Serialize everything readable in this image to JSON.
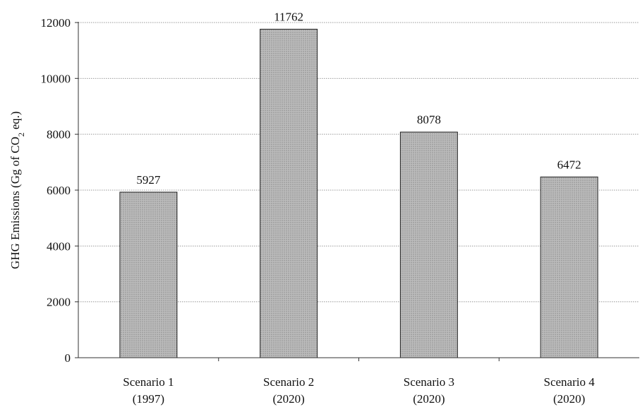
{
  "chart_data": {
    "type": "bar",
    "categories": [
      [
        "Scenario 1",
        "(1997)"
      ],
      [
        "Scenario 2",
        "(2020)"
      ],
      [
        "Scenario 3",
        "(2020)"
      ],
      [
        "Scenario 4",
        "(2020)"
      ]
    ],
    "values": [
      5927,
      11762,
      8078,
      6472
    ],
    "data_labels": [
      "5927",
      "11762",
      "8078",
      "6472"
    ],
    "ylabel": {
      "prefix": "GHG Emissions (Gg of CO",
      "subscript": "2",
      "suffix": " eq.)"
    },
    "xlabel": "",
    "ylim": [
      0,
      12000
    ],
    "yticks": [
      0,
      2000,
      4000,
      6000,
      8000,
      10000,
      12000
    ],
    "ytick_labels": [
      "0",
      "2000",
      "4000",
      "6000",
      "8000",
      "10000",
      "12000"
    ],
    "grid": "horizontal-dotted",
    "legend": "none",
    "colors": {
      "bar_fill": "#bcbcbc",
      "bar_stroke": "#222222",
      "grid": "#9a9a9a",
      "axis": "#333333"
    }
  }
}
